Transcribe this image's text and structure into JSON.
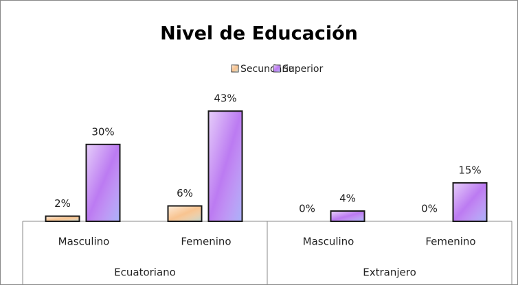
{
  "chart_data": {
    "type": "bar",
    "title": "Nivel de Educación",
    "categories": [
      "Masculino",
      "Femenino",
      "Masculino",
      "Femenino"
    ],
    "groups": [
      "Ecuatoriano",
      "Extranjero"
    ],
    "series": [
      {
        "name": "Secundaria",
        "color": "#f7bd84",
        "values": [
          2,
          6,
          0,
          0
        ],
        "value_labels": [
          "2%",
          "6%",
          "0%",
          "0%"
        ]
      },
      {
        "name": "Superior",
        "color": "#b46cf0",
        "values": [
          30,
          43,
          4,
          15
        ],
        "value_labels": [
          "30%",
          "43%",
          "4%",
          "15%"
        ]
      }
    ],
    "ylim": [
      0,
      50
    ],
    "legend": "top"
  }
}
